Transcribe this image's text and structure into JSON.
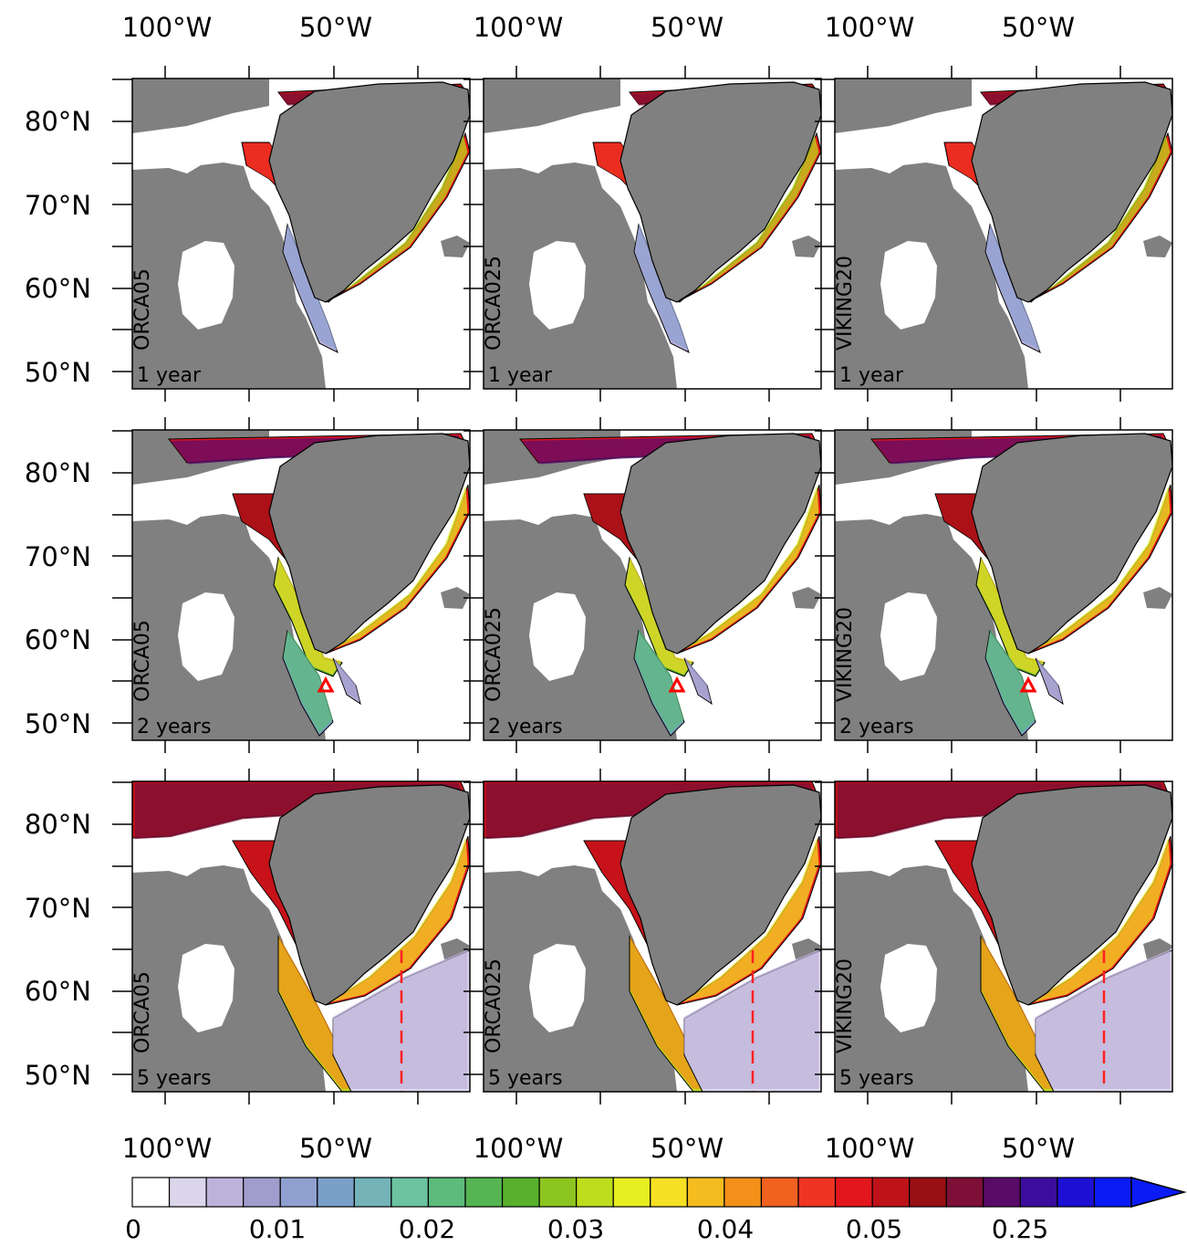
{
  "figure": {
    "columns": [
      {
        "model": "ORCA05"
      },
      {
        "model": "ORCA025"
      },
      {
        "model": "VIKING20"
      }
    ],
    "rows": [
      {
        "time_label": "1 year"
      },
      {
        "time_label": "2 years"
      },
      {
        "time_label": "5 years"
      }
    ],
    "lon_ticks": [
      "100°W",
      "50°W"
    ],
    "lat_ticks": [
      "80°N",
      "70°N",
      "60°N",
      "50°N"
    ],
    "colorbar": {
      "tick_labels": [
        "0",
        "0.01",
        "0.02",
        "0.03",
        "0.04",
        "0.05",
        "0.25"
      ],
      "colors": [
        "#ffffff",
        "#dcd6ec",
        "#bdb3da",
        "#a09ccc",
        "#8f9fcf",
        "#7a9fc9",
        "#74b3b8",
        "#6cc3a0",
        "#5dbc7b",
        "#55b553",
        "#58b02d",
        "#8cc51f",
        "#bddd1d",
        "#e7ee22",
        "#f6e125",
        "#f5bc1f",
        "#f39019",
        "#f16120",
        "#ee3523",
        "#e3161d",
        "#bd1218",
        "#981014",
        "#7e0f36",
        "#5a0b6a",
        "#3c0d9c",
        "#1d10d4",
        "#0a1bf5"
      ]
    },
    "markers": {
      "triangle_color": "#ff0000",
      "dashed_line_color": "#ff2020"
    },
    "colors": {
      "land": "#808080",
      "ocean": "#ffffff",
      "frame": "#000000"
    }
  }
}
